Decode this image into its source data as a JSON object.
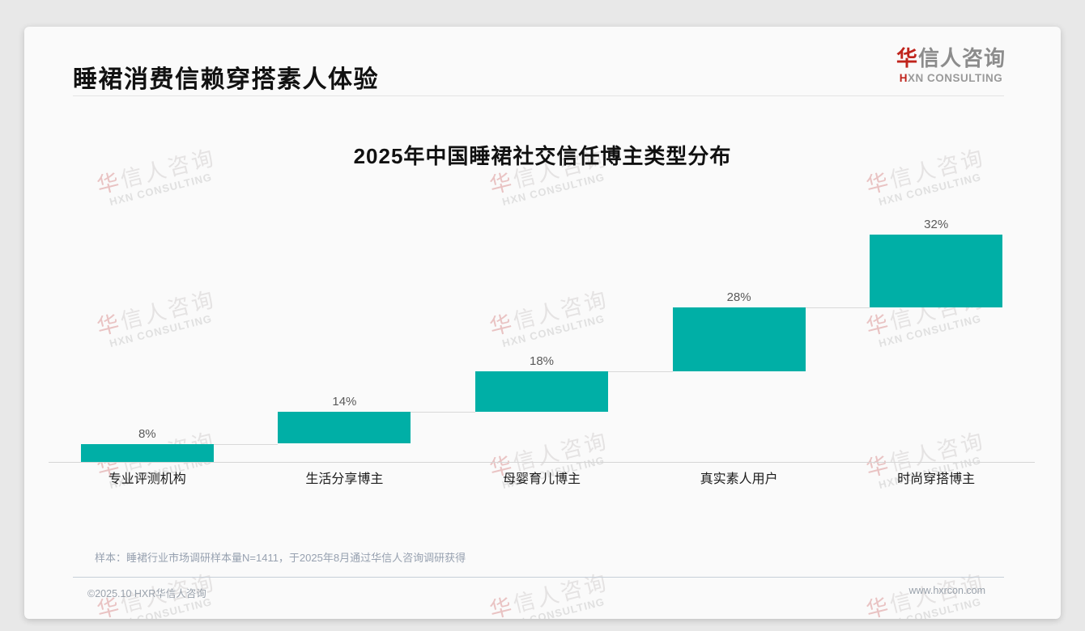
{
  "page": {
    "header": {
      "title": "睡裙消费信赖穿搭素人体验"
    },
    "logo": {
      "zh_first": "华",
      "zh_rest": "信人咨询",
      "en_first": "H",
      "en_rest": "XN CONSULTING"
    },
    "watermark": {
      "zh": "华信人咨询",
      "en": "HXN CONSULTING"
    },
    "footer": {
      "note": "样本：睡裙行业市场调研样本量N=1411，于2025年8月通过华信人咨询调研获得",
      "copyright": "©2025.10 HXR华信人咨询",
      "website": "www.hxrcon.com"
    }
  },
  "chart_data": {
    "type": "bar",
    "subtype": "stepped-waterfall",
    "title": "2025年中国睡裙社交信任博主类型分布",
    "categories": [
      "专业评测机构",
      "生活分享博主",
      "母婴育儿博主",
      "真实素人用户",
      "时尚穿搭博主"
    ],
    "values": [
      8,
      14,
      18,
      28,
      32
    ],
    "labels": [
      "8%",
      "14%",
      "18%",
      "28%",
      "32%"
    ],
    "cumulative_starts": [
      0,
      8,
      22,
      40,
      68
    ],
    "unit": "%",
    "ylim": [
      0,
      100
    ],
    "bar_color": "#00AFA6",
    "value_label_color": "#595959",
    "connector_color": "#d9d9d9",
    "axis_line_color": "#d5d5d5",
    "gridlines": false,
    "legend": false,
    "xlabel": "",
    "ylabel": ""
  }
}
